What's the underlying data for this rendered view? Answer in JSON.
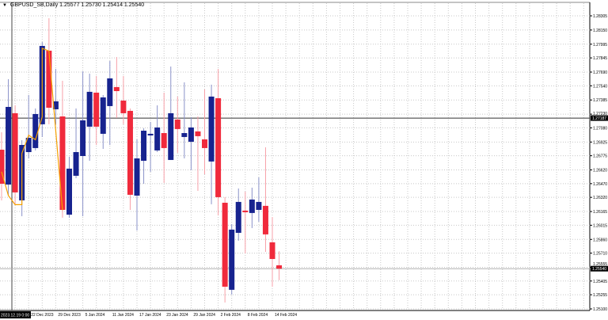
{
  "window": {
    "symbol_title": "GBPUSD_SB,Daily",
    "ohlc_readout": "1.25577 1.25730 1.25414 1.25540"
  },
  "colors": {
    "bull": "#17238f",
    "bull_wick": "#8a92c9",
    "bear": "#f02a3c",
    "bear_wick": "#f7a0a8",
    "indicator": "#f5a000",
    "grid": "#c8c8c8",
    "hline": "#404040"
  },
  "chart_data": {
    "type": "candlestick",
    "title": "GBPUSD_SB,Daily",
    "ylim": [
      1.251,
      1.28305
    ],
    "y_ticks": [
      "1.28305",
      "1.28150",
      "1.27995",
      "1.27845",
      "1.27690",
      "1.27540",
      "1.27385",
      "1.27230",
      "1.27080",
      "1.26925",
      "1.26775",
      "1.26620",
      "1.26470",
      "1.26320",
      "1.26165",
      "1.26015",
      "1.25860",
      "1.25710",
      "1.25555",
      "1.25405",
      "1.25255",
      "1.25100"
    ],
    "x_tick_labels": [
      {
        "bar": 4,
        "label": "22 Dec 2023"
      },
      {
        "bar": 8,
        "label": "29 Dec 2023"
      },
      {
        "bar": 12,
        "label": "5 Jan 2024"
      },
      {
        "bar": 16,
        "label": "11 Jan 2024"
      },
      {
        "bar": 20,
        "label": "17 Jan 2024"
      },
      {
        "bar": 24,
        "label": "23 Jan 2024"
      },
      {
        "bar": 28,
        "label": "29 Jan 2024"
      },
      {
        "bar": 32,
        "label": "2 Feb 2024"
      },
      {
        "bar": 36,
        "label": "8 Feb 2024"
      },
      {
        "bar": 40,
        "label": "14 Feb 2024"
      }
    ],
    "crosshair_time_label": "2023.12.19 0:00",
    "price_line": {
      "value": 1.27187,
      "label": "1.27187"
    },
    "bid_line": {
      "value": 1.2554,
      "label": "1.25540"
    },
    "candles": [
      [
        1.26841,
        1.27032,
        1.26287,
        1.26469
      ],
      [
        1.2646,
        1.27612,
        1.26339,
        1.27309
      ],
      [
        1.2724,
        1.27326,
        1.26244,
        1.26374
      ],
      [
        1.26287,
        1.26945,
        1.26114,
        1.26893
      ],
      [
        1.26815,
        1.27439,
        1.26746,
        1.26971
      ],
      [
        1.26859,
        1.27292,
        1.26833,
        1.27231
      ],
      [
        1.27119,
        1.28019,
        1.2698,
        1.27976
      ],
      [
        1.27924,
        1.28279,
        1.27119,
        1.273
      ],
      [
        1.27283,
        1.27725,
        1.27119,
        1.2737
      ],
      [
        1.27205,
        1.27595,
        1.26097,
        1.26183
      ],
      [
        1.26131,
        1.26764,
        1.26097,
        1.26634
      ],
      [
        1.26556,
        1.27292,
        1.2653,
        1.26815
      ],
      [
        1.26772,
        1.27699,
        1.26114,
        1.27162
      ],
      [
        1.27093,
        1.27673,
        1.2672,
        1.27474
      ],
      [
        1.27465,
        1.27647,
        1.26893,
        1.27093
      ],
      [
        1.27015,
        1.27439,
        1.2685,
        1.27413
      ],
      [
        1.27318,
        1.27811,
        1.26893,
        1.27621
      ],
      [
        1.27526,
        1.27855,
        1.27188,
        1.27482
      ],
      [
        1.27378,
        1.27647,
        1.27119,
        1.2724
      ],
      [
        1.27266,
        1.27292,
        1.26183,
        1.26348
      ],
      [
        1.26339,
        1.26954,
        1.25958,
        1.26746
      ],
      [
        1.2672,
        1.27075,
        1.26469,
        1.27049
      ],
      [
        1.26997,
        1.27145,
        1.26599,
        1.27015
      ],
      [
        1.26833,
        1.27326,
        1.26815,
        1.27084
      ],
      [
        1.27023,
        1.27465,
        1.26478,
        1.26859
      ],
      [
        1.26729,
        1.27751,
        1.26729,
        1.2724
      ],
      [
        1.27171,
        1.27422,
        1.26807,
        1.27067
      ],
      [
        1.2698,
        1.27578,
        1.26746,
        1.27023
      ],
      [
        1.26928,
        1.27197,
        1.26616,
        1.27084
      ],
      [
        1.27041,
        1.27205,
        1.26391,
        1.26989
      ],
      [
        1.26954,
        1.275,
        1.26573,
        1.26859
      ],
      [
        1.26712,
        1.27552,
        1.26244,
        1.27422
      ],
      [
        1.27404,
        1.27725,
        1.26123,
        1.26322
      ],
      [
        1.26261,
        1.26322,
        1.2517,
        1.25343
      ],
      [
        1.25309,
        1.26027,
        1.25257,
        1.25967
      ],
      [
        1.25932,
        1.26417,
        1.25846,
        1.2627
      ],
      [
        1.26175,
        1.26383,
        1.25707,
        1.26157
      ],
      [
        1.26149,
        1.26426,
        1.25984,
        1.26296
      ],
      [
        1.26183,
        1.26538,
        1.26053,
        1.2627
      ],
      [
        1.26227,
        1.26867,
        1.25724,
        1.25915
      ],
      [
        1.25828,
        1.26105,
        1.25343,
        1.25646
      ],
      [
        1.25577,
        1.2573,
        1.25414,
        1.2554
      ]
    ],
    "indicator_line": [
      [
        0,
        1.266
      ],
      [
        1,
        1.2634
      ],
      [
        2,
        1.2624
      ],
      [
        3,
        1.2624
      ],
      [
        3,
        1.268
      ],
      [
        4,
        1.27
      ],
      [
        5,
        1.2695
      ],
      [
        6,
        1.272
      ],
      [
        6,
        1.2795
      ],
      [
        7,
        1.2792
      ],
      [
        9,
        1.2618
      ]
    ]
  }
}
